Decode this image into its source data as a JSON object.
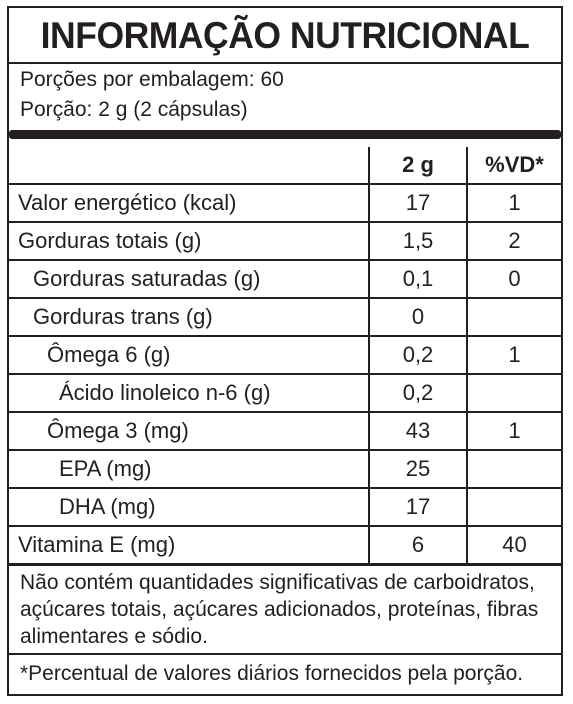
{
  "title": "INFORMAÇÃO NUTRICIONAL",
  "servings_per_package": "Porções por embalagem: 60",
  "serving_size": "Porção: 2 g (2 cápsulas)",
  "columns": {
    "amount": "2 g",
    "daily_value": "%VD*"
  },
  "rows": [
    {
      "name": "Valor energético (kcal)",
      "amount": "17",
      "dv": "1",
      "indent": 0
    },
    {
      "name": "Gorduras totais (g)",
      "amount": "1,5",
      "dv": "2",
      "indent": 0
    },
    {
      "name": "Gorduras saturadas (g)",
      "amount": "0,1",
      "dv": "0",
      "indent": 1
    },
    {
      "name": "Gorduras trans (g)",
      "amount": "0",
      "dv": "",
      "indent": 1
    },
    {
      "name": "Ômega 6 (g)",
      "amount": "0,2",
      "dv": "1",
      "indent": 2
    },
    {
      "name": "Ácido linoleico n-6 (g)",
      "amount": "0,2",
      "dv": "",
      "indent": 3
    },
    {
      "name": "Ômega 3 (mg)",
      "amount": "43",
      "dv": "1",
      "indent": 2
    },
    {
      "name": "EPA (mg)",
      "amount": "25",
      "dv": "",
      "indent": 3
    },
    {
      "name": "DHA (mg)",
      "amount": "17",
      "dv": "",
      "indent": 3
    },
    {
      "name": "Vitamina E (mg)",
      "amount": "6",
      "dv": "40",
      "indent": 0
    }
  ],
  "note": "Não contém quantidades significativas de carboidratos, açúcares totais, açúcares adicionados, proteínas, fibras alimentares e sódio.",
  "footnote": "*Percentual de valores diários fornecidos pela porção."
}
